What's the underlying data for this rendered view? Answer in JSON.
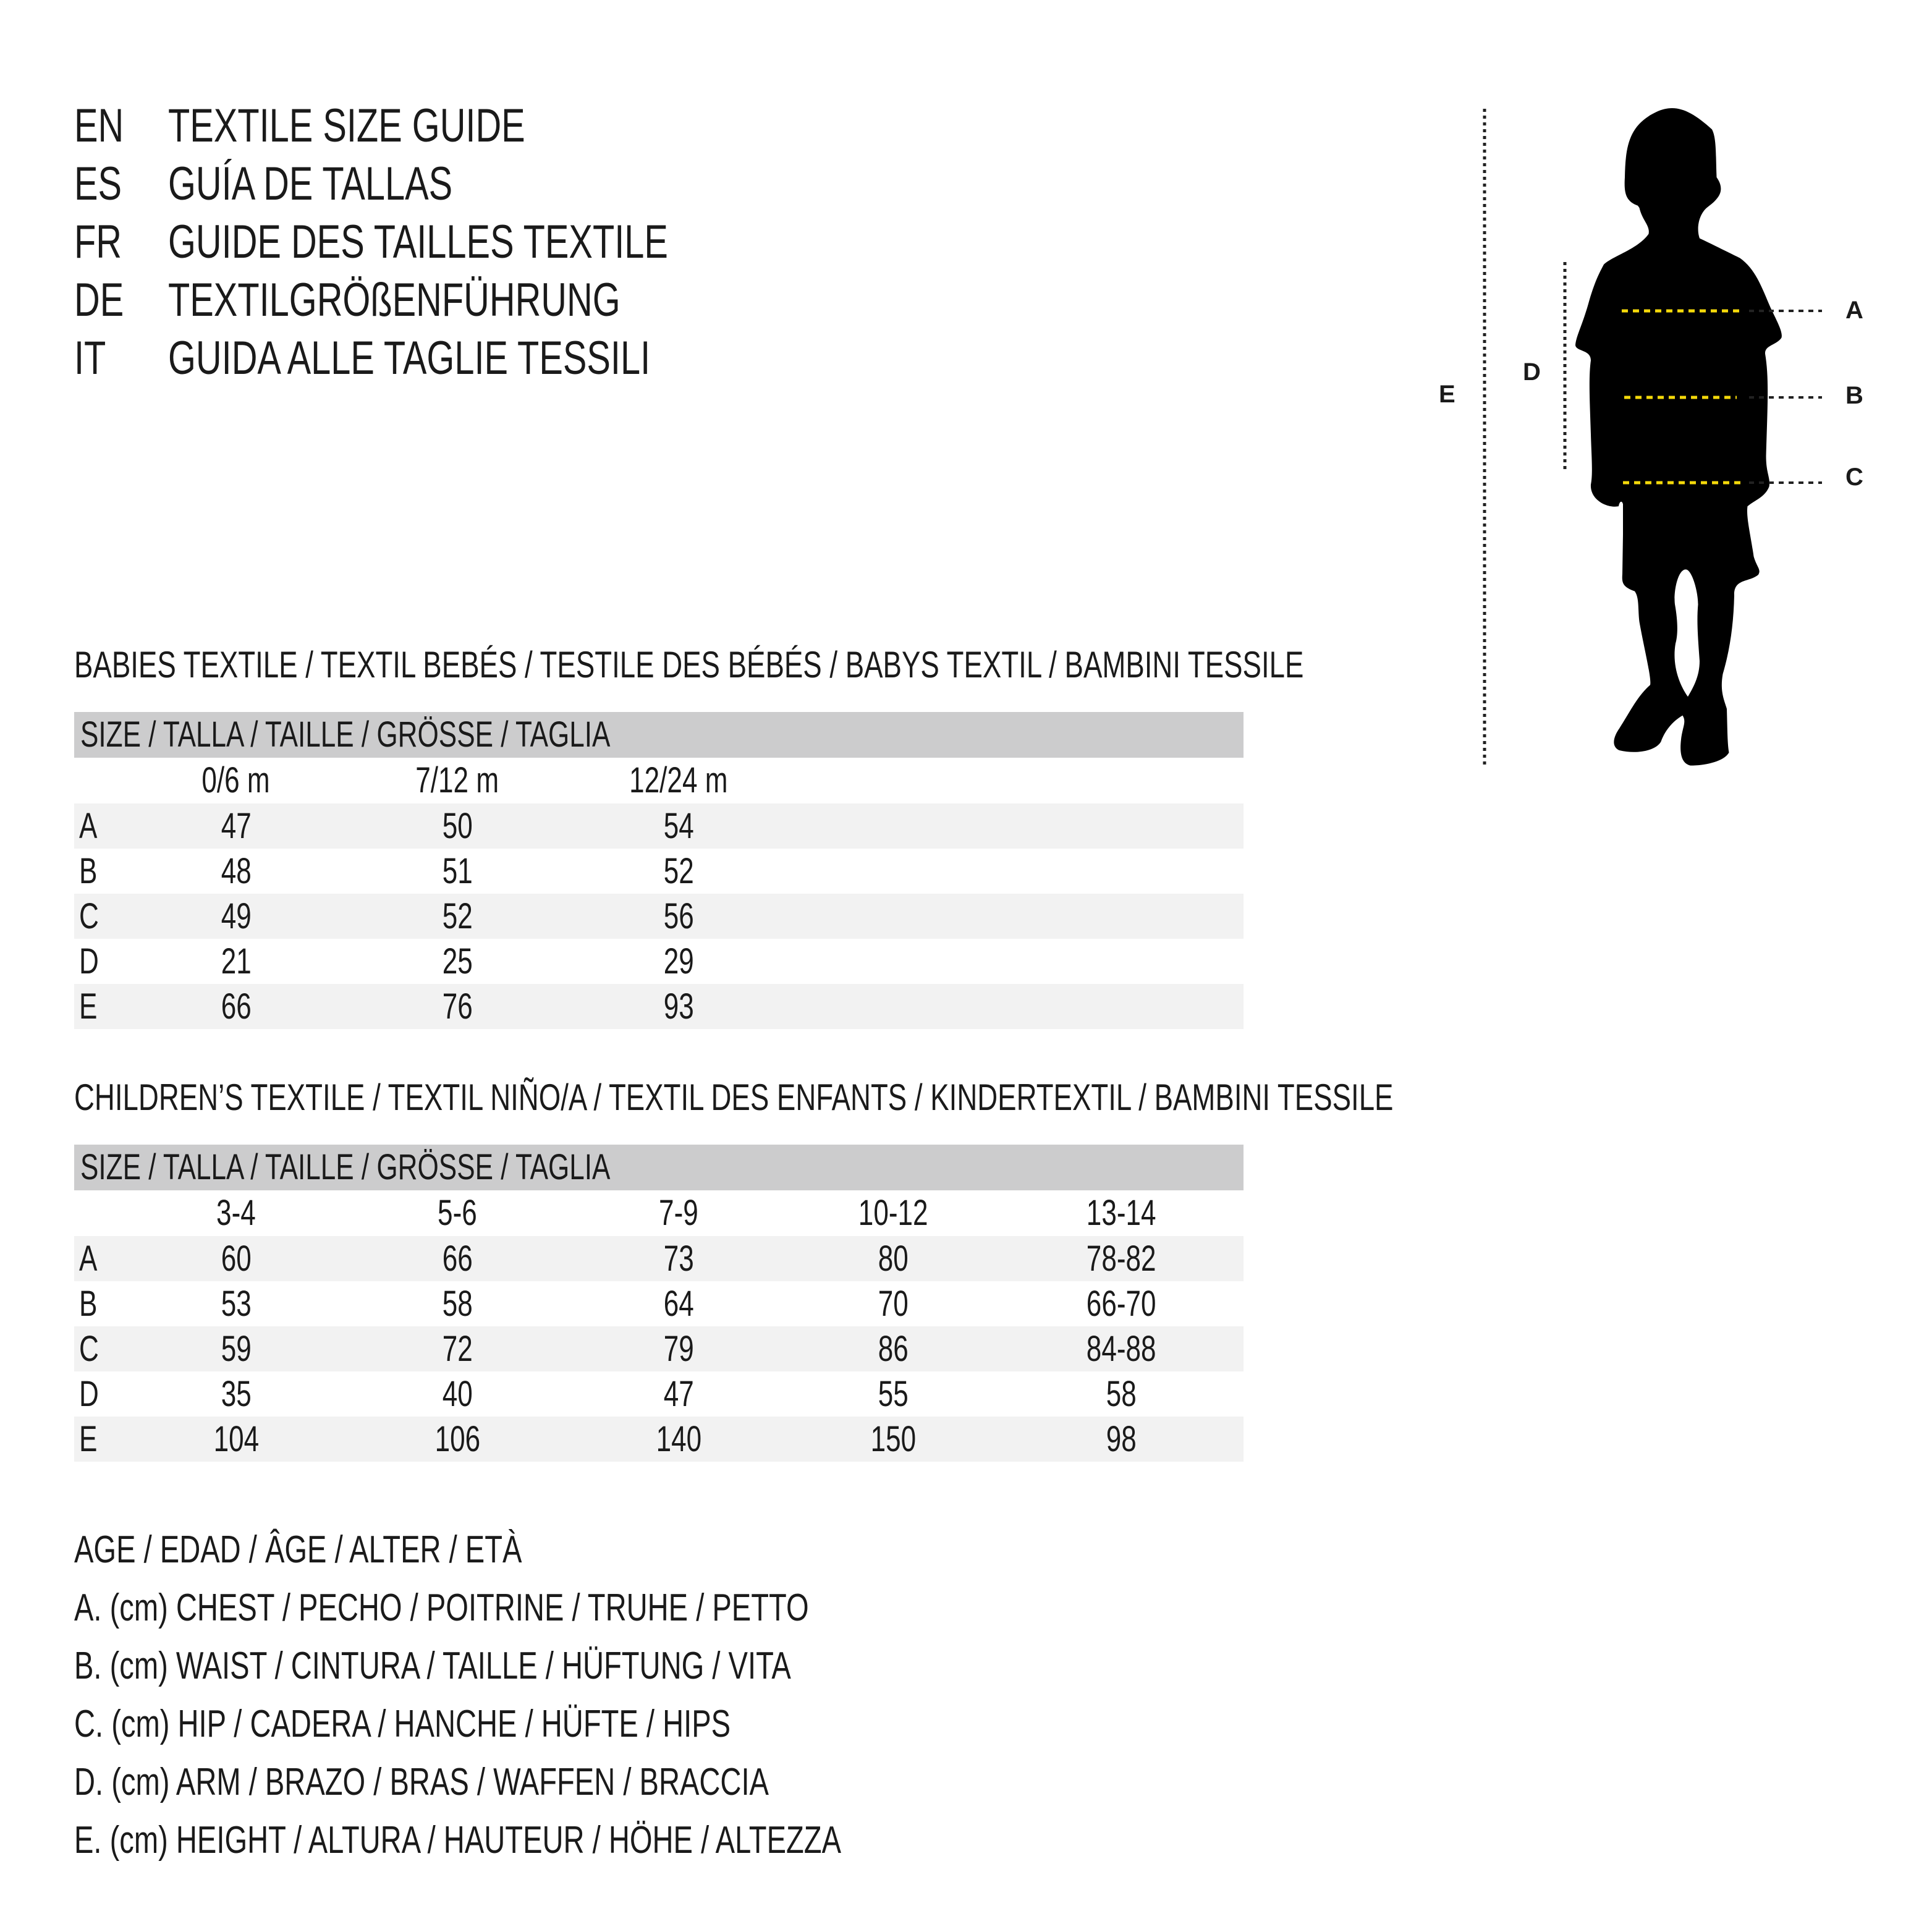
{
  "titles": [
    {
      "code": "EN",
      "text": "TEXTILE SIZE GUIDE"
    },
    {
      "code": "ES",
      "text": "GUÍA DE TALLAS"
    },
    {
      "code": "FR",
      "text": "GUIDE DES TAILLES TEXTILE"
    },
    {
      "code": "DE",
      "text": "TEXTILGRÖßENFÜHRUNG"
    },
    {
      "code": "IT",
      "text": "GUIDA ALLE TAGLIE TESSILI"
    }
  ],
  "babies": {
    "heading": "BABIES TEXTILE / TEXTIL BEBÉS / TESTILE DES BÉBÉS / BABYS TEXTIL / BAMBINI TESSILE",
    "size_header": "SIZE / TALLA / TAILLE / GRÖSSE / TAGLIA",
    "columns": [
      "0/6 m",
      "7/12 m",
      "12/24 m"
    ],
    "rows": [
      {
        "label": "A",
        "values": [
          "47",
          "50",
          "54"
        ]
      },
      {
        "label": "B",
        "values": [
          "48",
          "51",
          "52"
        ]
      },
      {
        "label": "C",
        "values": [
          "49",
          "52",
          "56"
        ]
      },
      {
        "label": "D",
        "values": [
          "21",
          "25",
          "29"
        ]
      },
      {
        "label": "E",
        "values": [
          "66",
          "76",
          "93"
        ]
      }
    ]
  },
  "children": {
    "heading": "CHILDREN’S TEXTILE / TEXTIL NIÑO/A / TEXTIL DES ENFANTS / KINDERTEXTIL / BAMBINI TESSILE",
    "size_header": "SIZE / TALLA / TAILLE / GRÖSSE / TAGLIA",
    "columns": [
      "3-4",
      "5-6",
      "7-9",
      "10-12",
      "13-14"
    ],
    "rows": [
      {
        "label": "A",
        "values": [
          "60",
          "66",
          "73",
          "80",
          "78-82"
        ]
      },
      {
        "label": "B",
        "values": [
          "53",
          "58",
          "64",
          "70",
          "66-70"
        ]
      },
      {
        "label": "C",
        "values": [
          "59",
          "72",
          "79",
          "86",
          "84-88"
        ]
      },
      {
        "label": "D",
        "values": [
          "35",
          "40",
          "47",
          "55",
          "58"
        ]
      },
      {
        "label": "E",
        "values": [
          "104",
          "106",
          "140",
          "150",
          "98"
        ]
      }
    ]
  },
  "legend": [
    "AGE / EDAD / ÂGE / ALTER / ETÀ",
    "A. (cm) CHEST / PECHO / POITRINE / TRUHE / PETTO",
    "B. (cm) WAIST / CINTURA / TAILLE / HÜFTUNG / VITA",
    "C. (cm) HIP / CADERA / HANCHE / HÜFTE / HIPS",
    "D. (cm) ARM / BRAZO / BRAS / WAFFEN / BRACCIA",
    "E. (cm) HEIGHT / ALTURA / HAUTEUR / HÖHE / ALTEZZA"
  ],
  "figure": {
    "labels": {
      "a": "A",
      "b": "B",
      "c": "C",
      "d": "D",
      "e": "E"
    },
    "colors": {
      "silhouette": "#000000",
      "measure_line": "#f5d90a",
      "guide_line": "#222222",
      "header_bg": "#cccccd",
      "row_shade": "#f2f2f2"
    }
  }
}
